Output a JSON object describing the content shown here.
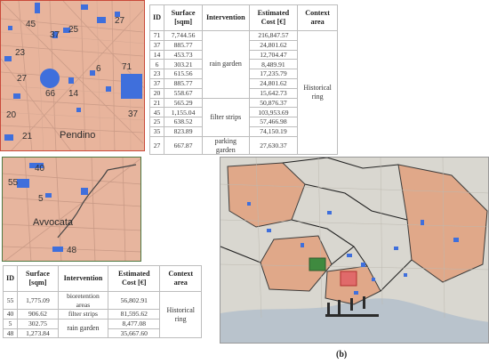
{
  "pendino_map": {
    "district_label": "Pendino",
    "area_labels": [
      "45",
      "37",
      "25",
      "27",
      "23",
      "27",
      "6",
      "71",
      "66",
      "14",
      "20",
      "37",
      "21"
    ]
  },
  "avvocata_map": {
    "district_label": "Avvocata",
    "area_labels": [
      "40",
      "55",
      "5",
      "48"
    ]
  },
  "table_pendino": {
    "headers": [
      "ID",
      "Surface [sqm]",
      "Intervention",
      "Estimated Cost [€]",
      "Context area"
    ],
    "rows": [
      {
        "id": "71",
        "surface": "7,744.56",
        "cost": "216,847.57"
      },
      {
        "id": "37",
        "surface": "885.77",
        "cost": "24,801.62"
      },
      {
        "id": "14",
        "surface": "453.73",
        "cost": "12,704.47"
      },
      {
        "id": "6",
        "surface": "303.21",
        "cost": "8,489.91"
      },
      {
        "id": "23",
        "surface": "615.56",
        "cost": "17,235.79"
      },
      {
        "id": "37",
        "surface": "885.77",
        "cost": "24,801.62"
      },
      {
        "id": "20",
        "surface": "558.67",
        "cost": "15,642.73"
      },
      {
        "id": "21",
        "surface": "565.29",
        "cost": "50,876.37"
      },
      {
        "id": "45",
        "surface": "1,155.04",
        "cost": "103,953.69"
      },
      {
        "id": "25",
        "surface": "638.52",
        "cost": "57,466.98"
      },
      {
        "id": "35",
        "surface": "823.89",
        "cost": "74,150.19"
      },
      {
        "id": "27",
        "surface": "667.87",
        "cost": "27,630.37"
      }
    ],
    "intervention_groups": [
      "rain garden",
      "filter strips",
      "parking garden"
    ],
    "context_area": "Historical ring"
  },
  "table_avvocata": {
    "headers": [
      "ID",
      "Surface [sqm]",
      "Intervention",
      "Estimated Cost [€]",
      "Context area"
    ],
    "rows": [
      {
        "id": "55",
        "surface": "1,775.09",
        "intervention": "bioretention areas",
        "cost": "56,802.91"
      },
      {
        "id": "40",
        "surface": "906.62",
        "intervention": "filter strips",
        "cost": "81,595.62"
      },
      {
        "id": "5",
        "surface": "302.75",
        "intervention": "rain garden",
        "cost": "8,477.08"
      },
      {
        "id": "48",
        "surface": "1,273.84",
        "intervention": "",
        "cost": "35,667.60"
      }
    ],
    "context_area": "Historical ring"
  },
  "caption": "(b)",
  "colors": {
    "district_fill": "#e8b49c",
    "intervention_fill": "#3f6fdc",
    "pendino_border": "#c94a3a",
    "avvocata_border": "#4f7a43",
    "sea": "#b9c3cc"
  }
}
